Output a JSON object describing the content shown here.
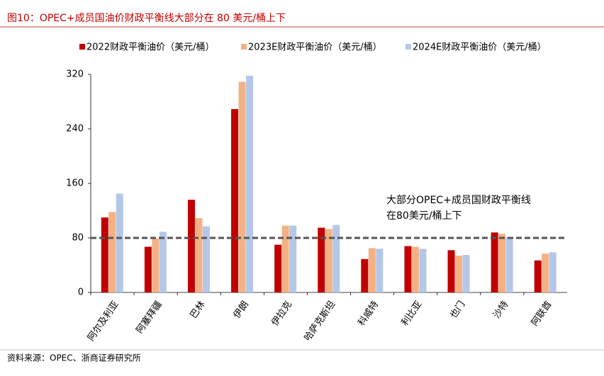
{
  "chart_data": {
    "type": "bar",
    "title": "图10：OPEC+成员国油价财政平衡线大部分在 80 美元/桶上下",
    "source": "资料来源：OPEC、浙商证券研究所",
    "annotation": [
      "大部分OPEC+成员国财政平衡线",
      "在80美元/桶上下"
    ],
    "reference_line": 80,
    "categories": [
      "阿尔及利亚",
      "阿塞拜疆",
      "巴林",
      "伊朗",
      "伊拉克",
      "哈萨克斯坦",
      "科威特",
      "利比亚",
      "也门",
      "沙特",
      "阿联酋"
    ],
    "series": [
      {
        "name": "2022财政平衡油价（美元/桶）",
        "color": "#c00000",
        "values": [
          110,
          67,
          136,
          269,
          70,
          95,
          49,
          68,
          62,
          88,
          47
        ]
      },
      {
        "name": "2023E财政平衡油价（美元/桶）",
        "color": "#f4b183",
        "values": [
          118,
          79,
          109,
          309,
          98,
          93,
          65,
          67,
          54,
          86,
          57
        ]
      },
      {
        "name": "2024E财政平衡油价（美元/桶）",
        "color": "#b4c7e7",
        "values": [
          145,
          89,
          97,
          318,
          98,
          99,
          64,
          64,
          55,
          81,
          59
        ]
      }
    ],
    "ylim": [
      0,
      320
    ],
    "yticks": [
      0,
      80,
      160,
      240,
      320
    ],
    "grid": false
  }
}
